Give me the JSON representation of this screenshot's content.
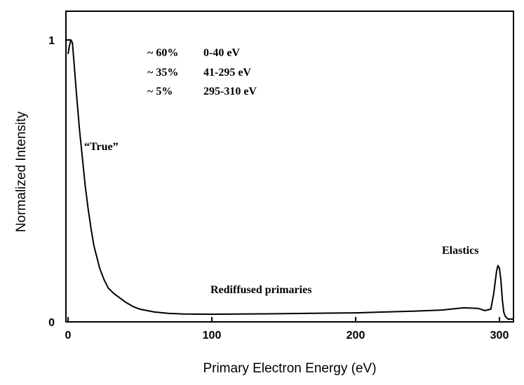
{
  "chart_data": {
    "type": "line",
    "title": "",
    "xlabel": "Primary Electron Energy (eV)",
    "ylabel": "Normalized Intensity",
    "xlim": [
      0,
      312
    ],
    "ylim": [
      0,
      1.08
    ],
    "grid": false,
    "legend": "none",
    "x_ticks": [
      {
        "value": 0,
        "label": "0"
      },
      {
        "value": 100,
        "label": "100"
      },
      {
        "value": 200,
        "label": "200"
      },
      {
        "value": 300,
        "label": "300"
      }
    ],
    "y_ticks": [
      {
        "value": 0,
        "label": "0"
      },
      {
        "value": 1,
        "label": "1"
      }
    ],
    "series": [
      {
        "x": [
          0,
          1,
          2,
          3,
          4,
          6,
          8,
          10,
          12,
          14,
          16,
          18,
          20,
          22,
          25,
          28,
          32,
          36,
          40,
          45,
          50,
          60,
          70,
          80,
          100,
          120,
          150,
          180,
          200,
          220,
          240,
          260,
          275,
          285,
          290,
          294,
          296,
          298,
          299,
          300,
          301,
          302,
          303,
          304,
          306,
          310
        ],
        "y": [
          0.95,
          0.98,
          1.0,
          0.99,
          0.93,
          0.8,
          0.68,
          0.58,
          0.48,
          0.4,
          0.33,
          0.27,
          0.23,
          0.19,
          0.15,
          0.12,
          0.1,
          0.085,
          0.07,
          0.055,
          0.045,
          0.035,
          0.03,
          0.028,
          0.027,
          0.028,
          0.029,
          0.031,
          0.032,
          0.035,
          0.038,
          0.042,
          0.05,
          0.048,
          0.04,
          0.045,
          0.1,
          0.18,
          0.2,
          0.19,
          0.15,
          0.08,
          0.035,
          0.02,
          0.01,
          0.01
        ]
      }
    ],
    "annotations": {
      "percent_lines": [
        {
          "pct": "~ 60%",
          "range": "0-40 eV"
        },
        {
          "pct": "~ 35%",
          "range": "41-295 eV"
        },
        {
          "pct": "~ 5%",
          "range": "295-310 eV"
        }
      ],
      "true_label": "“True”",
      "elastics_label": "Elastics",
      "rediffused_label": "Rediffused primaries"
    }
  }
}
